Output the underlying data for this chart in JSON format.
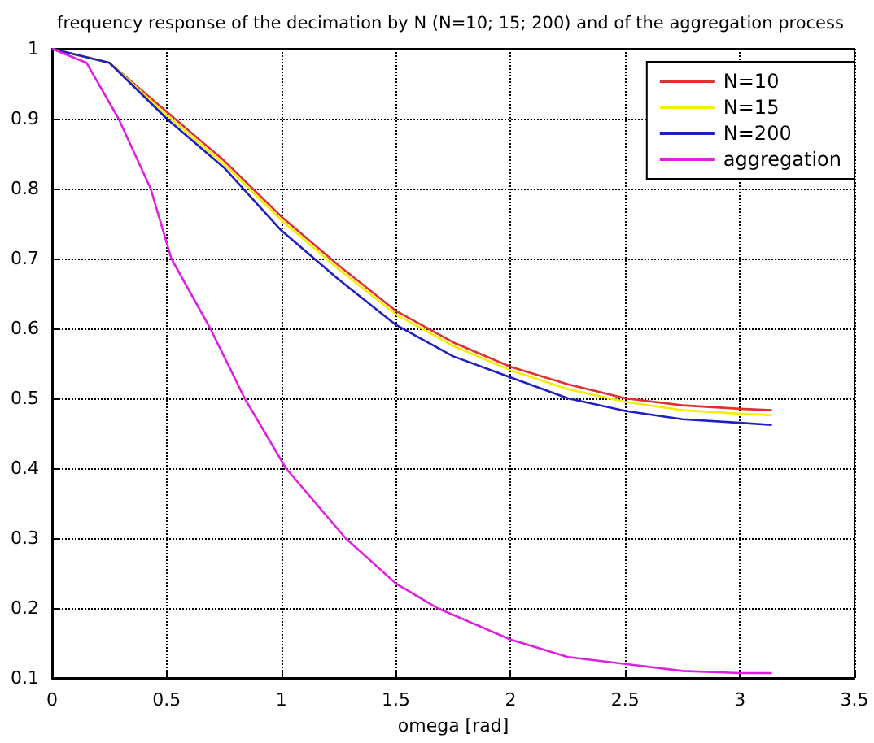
{
  "chart_data": {
    "type": "line",
    "title": "frequency response of the decimation by N (N=10; 15; 200) and of the aggregation process",
    "xlabel": "omega [rad]",
    "xlim": [
      0,
      3.5
    ],
    "xticks": [
      0,
      0.5,
      1,
      1.5,
      2,
      2.5,
      3,
      3.5
    ],
    "ylim": [
      0.1,
      1
    ],
    "yticks": [
      0.1,
      0.2,
      0.3,
      0.4,
      0.5,
      0.6,
      0.7,
      0.8,
      0.9,
      1
    ],
    "grid": true,
    "legend": "top right",
    "marker": "none",
    "line_style": "solid",
    "series": [
      {
        "name": "N=10",
        "color": "#e03030",
        "x": [
          0,
          0.25,
          0.5,
          0.75,
          1,
          1.25,
          1.5,
          1.75,
          2,
          2.25,
          2.5,
          2.75,
          3,
          3.14
        ],
        "values": [
          1,
          0.98,
          0.91,
          0.84,
          0.76,
          0.69,
          0.625,
          0.58,
          0.545,
          0.52,
          0.5,
          0.49,
          0.485,
          0.483
        ]
      },
      {
        "name": "N=15",
        "color": "#f0f000",
        "x": [
          0,
          0.25,
          0.5,
          0.75,
          1,
          1.25,
          1.5,
          1.75,
          2,
          2.25,
          2.5,
          2.75,
          3,
          3.14
        ],
        "values": [
          1,
          0.98,
          0.905,
          0.835,
          0.755,
          0.685,
          0.62,
          0.575,
          0.54,
          0.513,
          0.495,
          0.483,
          0.478,
          0.476
        ]
      },
      {
        "name": "N=200",
        "color": "#2020c0",
        "x": [
          0,
          0.25,
          0.5,
          0.75,
          1,
          1.25,
          1.5,
          1.75,
          2,
          2.25,
          2.5,
          2.75,
          3,
          3.14
        ],
        "values": [
          1,
          0.98,
          0.9,
          0.83,
          0.74,
          0.67,
          0.605,
          0.56,
          0.53,
          0.5,
          0.482,
          0.47,
          0.465,
          0.462
        ]
      },
      {
        "name": "aggregation",
        "color": "#e020e0",
        "x": [
          0,
          0.15,
          0.29,
          0.43,
          0.52,
          0.69,
          0.75,
          0.84,
          1.02,
          1.28,
          1.5,
          1.68,
          2,
          2.25,
          2.5,
          2.75,
          3,
          3.14
        ],
        "values": [
          1,
          0.98,
          0.9,
          0.8,
          0.7,
          0.6,
          0.56,
          0.5,
          0.4,
          0.3,
          0.235,
          0.2,
          0.155,
          0.13,
          0.12,
          0.11,
          0.107,
          0.107
        ]
      }
    ]
  }
}
